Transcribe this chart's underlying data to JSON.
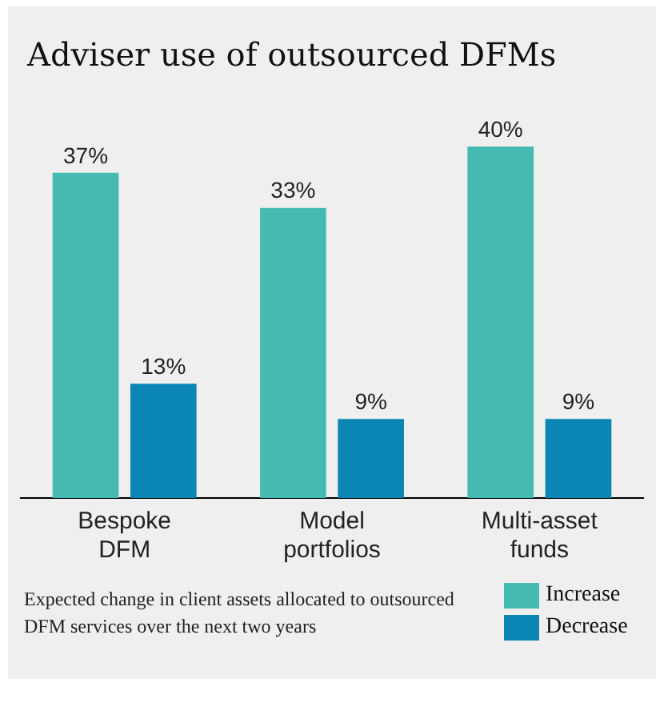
{
  "chart_data": {
    "type": "bar",
    "title": "Adviser use of outsourced DFMs",
    "categories": [
      "Bespoke DFM",
      "Model portfolios",
      "Multi-asset funds"
    ],
    "series": [
      {
        "name": "Increase",
        "color": "#45bab0",
        "values": [
          37,
          33,
          40
        ],
        "value_labels": [
          "37%",
          "33%",
          "40%"
        ]
      },
      {
        "name": "Decrease",
        "color": "#0b86b4",
        "values": [
          13,
          9,
          9
        ],
        "value_labels": [
          "13%",
          "9%",
          "9%"
        ]
      }
    ],
    "legend": "bottom right",
    "grid": false,
    "annotations": [
      "Expected change in client assets allocated to outsourced DFM services over the next two years"
    ]
  }
}
